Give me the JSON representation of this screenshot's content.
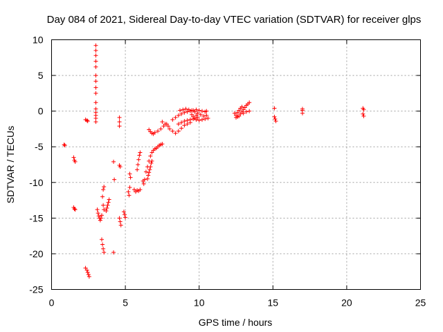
{
  "chart_data": {
    "type": "scatter",
    "title": "Day 084 of 2021, Sidereal Day-to-day VTEC variation (SDTVAR) for receiver glps",
    "xlabel": "GPS time / hours",
    "ylabel": "SDTVAR / TECUs",
    "xlim": [
      0,
      25
    ],
    "ylim": [
      -25,
      10
    ],
    "xticks": [
      "0",
      "5",
      "10",
      "15",
      "20",
      "25"
    ],
    "yticks": [
      "10",
      "5",
      "0",
      "-5",
      "-10",
      "-15",
      "-20",
      "-25"
    ],
    "grid": true,
    "marker": "+",
    "color": "#ff0000",
    "series": [
      {
        "name": "SDTVAR",
        "points": [
          [
            0.85,
            -4.7
          ],
          [
            0.9,
            -4.8
          ],
          [
            1.5,
            -6.5
          ],
          [
            1.55,
            -6.9
          ],
          [
            1.6,
            -7.1
          ],
          [
            1.5,
            -13.5
          ],
          [
            1.55,
            -13.7
          ],
          [
            1.6,
            -13.8
          ],
          [
            2.3,
            -1.2
          ],
          [
            2.4,
            -1.3
          ],
          [
            2.45,
            -1.4
          ],
          [
            2.3,
            -22.0
          ],
          [
            2.4,
            -22.3
          ],
          [
            2.45,
            -22.6
          ],
          [
            2.5,
            -22.9
          ],
          [
            2.55,
            -23.2
          ],
          [
            3.0,
            9.2
          ],
          [
            3.0,
            8.5
          ],
          [
            3.0,
            7.8
          ],
          [
            3.0,
            7.0
          ],
          [
            3.0,
            6.2
          ],
          [
            3.0,
            5.0
          ],
          [
            3.0,
            4.2
          ],
          [
            3.0,
            3.3
          ],
          [
            3.0,
            2.5
          ],
          [
            3.0,
            1.2
          ],
          [
            3.0,
            0.3
          ],
          [
            3.0,
            -0.2
          ],
          [
            3.0,
            -0.6
          ],
          [
            3.0,
            -1.0
          ],
          [
            3.0,
            -1.5
          ],
          [
            3.1,
            -13.8
          ],
          [
            3.15,
            -14.3
          ],
          [
            3.2,
            -14.7
          ],
          [
            3.25,
            -15.0
          ],
          [
            3.3,
            -15.3
          ],
          [
            3.35,
            -15.0
          ],
          [
            3.4,
            -14.6
          ],
          [
            3.45,
            -12.0
          ],
          [
            3.5,
            -11.0
          ],
          [
            3.55,
            -10.6
          ],
          [
            3.5,
            -13.2
          ],
          [
            3.55,
            -13.8
          ],
          [
            3.4,
            -18.0
          ],
          [
            3.45,
            -18.7
          ],
          [
            3.5,
            -19.3
          ],
          [
            3.55,
            -19.8
          ],
          [
            3.7,
            -14.0
          ],
          [
            3.75,
            -13.6
          ],
          [
            3.8,
            -13.2
          ],
          [
            3.85,
            -12.8
          ],
          [
            3.9,
            -12.4
          ],
          [
            4.2,
            -7.1
          ],
          [
            4.25,
            -9.6
          ],
          [
            4.2,
            -19.8
          ],
          [
            4.6,
            -0.9
          ],
          [
            4.6,
            -1.5
          ],
          [
            4.6,
            -2.1
          ],
          [
            4.6,
            -7.6
          ],
          [
            4.65,
            -7.8
          ],
          [
            4.6,
            -15.0
          ],
          [
            4.65,
            -15.5
          ],
          [
            4.7,
            -16.0
          ],
          [
            4.9,
            -14.1
          ],
          [
            4.95,
            -14.5
          ],
          [
            5.0,
            -14.9
          ],
          [
            5.2,
            -11.3
          ],
          [
            5.25,
            -11.8
          ],
          [
            5.3,
            -10.7
          ],
          [
            5.35,
            -9.3
          ],
          [
            5.3,
            -8.8
          ],
          [
            5.6,
            -11.0
          ],
          [
            5.7,
            -11.3
          ],
          [
            5.8,
            -11.1
          ],
          [
            5.9,
            -11.2
          ],
          [
            6.0,
            -11.0
          ],
          [
            5.8,
            -8.2
          ],
          [
            5.85,
            -7.5
          ],
          [
            5.9,
            -6.8
          ],
          [
            5.95,
            -6.2
          ],
          [
            6.0,
            -5.8
          ],
          [
            6.2,
            -9.8
          ],
          [
            6.25,
            -10.2
          ],
          [
            6.3,
            -9.6
          ],
          [
            6.4,
            -8.5
          ],
          [
            6.5,
            -7.8
          ],
          [
            6.6,
            -7.0
          ],
          [
            6.7,
            -6.3
          ],
          [
            6.8,
            -5.8
          ],
          [
            6.9,
            -5.5
          ],
          [
            7.0,
            -5.3
          ],
          [
            7.1,
            -5.2
          ],
          [
            7.2,
            -5.0
          ],
          [
            7.3,
            -4.8
          ],
          [
            7.4,
            -4.7
          ],
          [
            7.5,
            -4.6
          ],
          [
            6.5,
            -9.5
          ],
          [
            6.55,
            -9.0
          ],
          [
            6.6,
            -8.6
          ],
          [
            6.65,
            -8.2
          ],
          [
            6.7,
            -7.8
          ],
          [
            6.75,
            -7.3
          ],
          [
            6.8,
            -7.0
          ],
          [
            6.6,
            -2.6
          ],
          [
            6.7,
            -2.9
          ],
          [
            6.8,
            -3.1
          ],
          [
            6.9,
            -3.2
          ],
          [
            7.0,
            -3.0
          ],
          [
            7.2,
            -2.8
          ],
          [
            7.4,
            -2.5
          ],
          [
            7.6,
            -2.1
          ],
          [
            7.8,
            -1.8
          ],
          [
            7.5,
            -1.5
          ],
          [
            7.7,
            -1.8
          ],
          [
            7.9,
            -2.1
          ],
          [
            8.0,
            -2.5
          ],
          [
            8.2,
            -2.8
          ],
          [
            8.4,
            -3.1
          ],
          [
            8.6,
            -2.8
          ],
          [
            8.8,
            -2.4
          ],
          [
            9.0,
            -2.0
          ],
          [
            9.2,
            -1.8
          ],
          [
            9.4,
            -1.6
          ],
          [
            8.2,
            -1.2
          ],
          [
            8.4,
            -0.9
          ],
          [
            8.6,
            -0.6
          ],
          [
            8.8,
            -0.4
          ],
          [
            9.0,
            -0.2
          ],
          [
            9.2,
            -0.1
          ],
          [
            9.4,
            0.0
          ],
          [
            9.6,
            0.1
          ],
          [
            9.8,
            0.2
          ],
          [
            10.0,
            0.1
          ],
          [
            10.2,
            0.0
          ],
          [
            10.4,
            -0.1
          ],
          [
            8.6,
            -1.8
          ],
          [
            8.8,
            -1.6
          ],
          [
            9.0,
            -1.4
          ],
          [
            9.2,
            -1.3
          ],
          [
            9.4,
            -1.2
          ],
          [
            9.6,
            -1.1
          ],
          [
            9.8,
            -1.2
          ],
          [
            10.0,
            -1.3
          ],
          [
            10.2,
            -1.2
          ],
          [
            10.4,
            -1.1
          ],
          [
            10.6,
            -1.0
          ],
          [
            8.7,
            0.1
          ],
          [
            8.9,
            0.2
          ],
          [
            9.1,
            0.3
          ],
          [
            9.3,
            0.2
          ],
          [
            9.5,
            0.1
          ],
          [
            9.7,
            -0.1
          ],
          [
            9.9,
            -0.3
          ],
          [
            10.1,
            -0.5
          ],
          [
            10.3,
            -0.7
          ],
          [
            9.5,
            -0.5
          ],
          [
            9.6,
            -0.8
          ],
          [
            9.7,
            -1.0
          ],
          [
            9.8,
            -0.6
          ],
          [
            9.9,
            -0.9
          ],
          [
            10.5,
            -0.6
          ],
          [
            10.5,
            0.0
          ],
          [
            12.4,
            -0.3
          ],
          [
            12.5,
            -0.6
          ],
          [
            12.6,
            -0.8
          ],
          [
            12.7,
            -0.7
          ],
          [
            12.8,
            -0.4
          ],
          [
            12.9,
            -0.1
          ],
          [
            13.0,
            0.2
          ],
          [
            13.1,
            0.5
          ],
          [
            13.2,
            0.8
          ],
          [
            13.3,
            1.0
          ],
          [
            13.4,
            1.2
          ],
          [
            12.5,
            -0.9
          ],
          [
            12.6,
            -0.2
          ],
          [
            12.7,
            0.1
          ],
          [
            12.8,
            0.4
          ],
          [
            12.9,
            0.6
          ],
          [
            13.0,
            -0.3
          ],
          [
            13.2,
            -0.1
          ],
          [
            13.4,
            0.0
          ],
          [
            15.1,
            0.4
          ],
          [
            15.1,
            -0.8
          ],
          [
            15.15,
            -1.1
          ],
          [
            15.2,
            -1.4
          ],
          [
            17.0,
            0.3
          ],
          [
            17.0,
            0.1
          ],
          [
            17.0,
            -0.3
          ],
          [
            21.1,
            0.4
          ],
          [
            21.15,
            0.2
          ],
          [
            21.1,
            -0.4
          ],
          [
            21.15,
            -0.7
          ]
        ]
      }
    ]
  }
}
